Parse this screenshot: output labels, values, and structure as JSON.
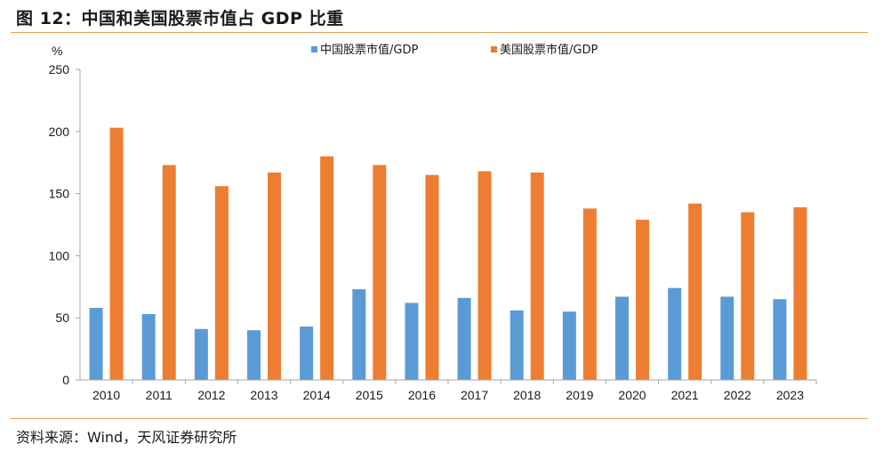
{
  "figure": {
    "title": "图 12：中国和美国股票市值占 GDP 比重",
    "source": "资料来源：Wind，天风证券研究所"
  },
  "chart_data": {
    "type": "bar",
    "ylabel": "%",
    "ylim": [
      0,
      250
    ],
    "yticks": [
      0,
      50,
      100,
      150,
      200,
      250
    ],
    "grid": false,
    "legend_position": "top",
    "categories": [
      "2010",
      "2011",
      "2012",
      "2013",
      "2014",
      "2015",
      "2016",
      "2017",
      "2018",
      "2019",
      "2020",
      "2021",
      "2022",
      "2023"
    ],
    "series": [
      {
        "name": "中国股票市值/GDP",
        "color": "#5b9bd5",
        "values": [
          58,
          53,
          41,
          40,
          43,
          73,
          62,
          66,
          56,
          55,
          67,
          74,
          67,
          65
        ]
      },
      {
        "name": "美国股票市值/GDP",
        "color": "#ed7d31",
        "values": [
          203,
          173,
          156,
          167,
          180,
          173,
          165,
          168,
          167,
          138,
          129,
          142,
          135,
          139
        ]
      }
    ]
  }
}
